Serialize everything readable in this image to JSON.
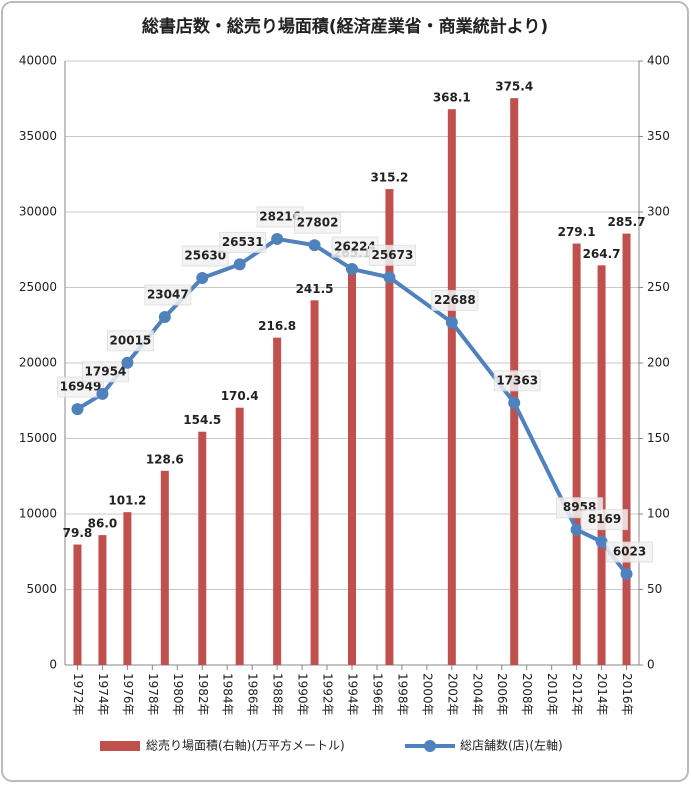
{
  "chart_data": {
    "type": "bar-line",
    "title": "総書店数・総売り場面積(経済産業省・商業統計より)",
    "x": [
      1972,
      1974,
      1976,
      1979,
      1982,
      1985,
      1988,
      1991,
      1994,
      1997,
      2002,
      2007,
      2012,
      2014,
      2016
    ],
    "xlim": [
      1971,
      2017
    ],
    "xticks": [
      {
        "value": 1972,
        "label": "1972年"
      },
      {
        "value": 1974,
        "label": "1974年"
      },
      {
        "value": 1976,
        "label": "1976年"
      },
      {
        "value": 1978,
        "label": "1978年"
      },
      {
        "value": 1980,
        "label": "1980年"
      },
      {
        "value": 1982,
        "label": "1982年"
      },
      {
        "value": 1984,
        "label": "1984年"
      },
      {
        "value": 1986,
        "label": "1986年"
      },
      {
        "value": 1988,
        "label": "1988年"
      },
      {
        "value": 1990,
        "label": "1990年"
      },
      {
        "value": 1992,
        "label": "1992年"
      },
      {
        "value": 1994,
        "label": "1994年"
      },
      {
        "value": 1996,
        "label": "1996年"
      },
      {
        "value": 1998,
        "label": "1998年"
      },
      {
        "value": 2000,
        "label": "2000年"
      },
      {
        "value": 2002,
        "label": "2002年"
      },
      {
        "value": 2004,
        "label": "2004年"
      },
      {
        "value": 2006,
        "label": "2006年"
      },
      {
        "value": 2008,
        "label": "2008年"
      },
      {
        "value": 2010,
        "label": "2010年"
      },
      {
        "value": 2012,
        "label": "2012年"
      },
      {
        "value": 2014,
        "label": "2014年"
      },
      {
        "value": 2016,
        "label": "2016年"
      }
    ],
    "ylim": [
      0,
      40000
    ],
    "yticks": [
      0,
      5000,
      10000,
      15000,
      20000,
      25000,
      30000,
      35000,
      40000
    ],
    "y2lim": [
      0,
      400
    ],
    "y2ticks": [
      0,
      50,
      100,
      150,
      200,
      250,
      300,
      350,
      400
    ],
    "grid": true,
    "legend": "bottom",
    "series": [
      {
        "name": "総売り場面積(右軸)(万平方メートル)",
        "type": "bar",
        "axis": "y2",
        "color": "#c0504d",
        "values": [
          79.8,
          86.0,
          101.2,
          128.6,
          154.5,
          170.4,
          216.8,
          241.5,
          265.1,
          315.2,
          368.1,
          375.4,
          279.1,
          264.7,
          285.7
        ],
        "value_labels": [
          "79.8",
          "86.0",
          "101.2",
          "128.6",
          "154.5",
          "170.4",
          "216.8",
          "241.5",
          "265.1",
          "315.2",
          "368.1",
          "375.4",
          "279.1",
          "264.7",
          "285.7"
        ]
      },
      {
        "name": "総店舗数(店)(左軸)",
        "type": "line",
        "axis": "y",
        "color": "#4f81bd",
        "values": [
          16949,
          17954,
          20015,
          23047,
          25630,
          26531,
          28216,
          27802,
          26224,
          25673,
          22688,
          17363,
          8958,
          8169,
          6023
        ]
      }
    ]
  }
}
